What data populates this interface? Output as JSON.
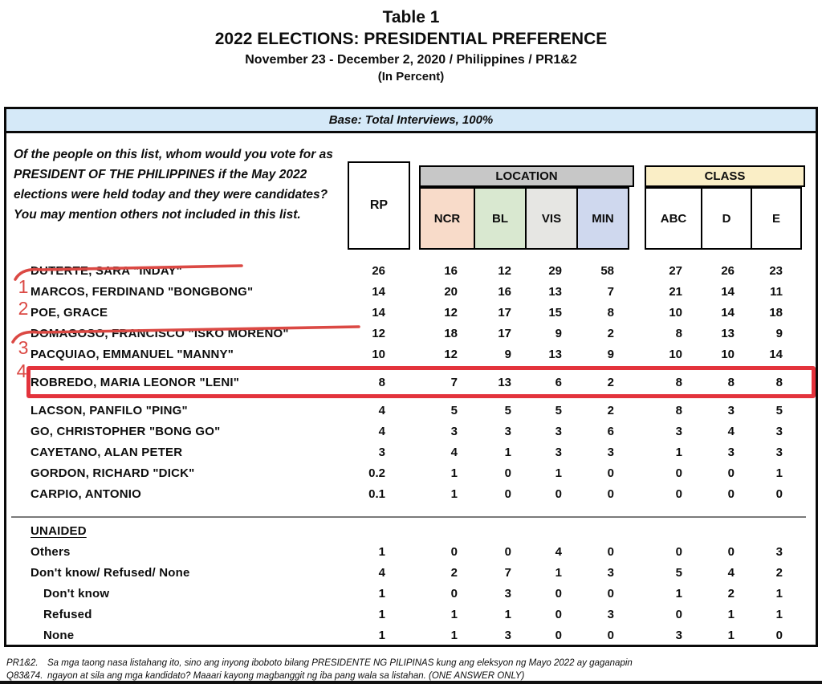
{
  "title": {
    "table_label": "Table 1",
    "main": "2022 ELECTIONS: PRESIDENTIAL PREFERENCE",
    "period": "November 23 - December 2, 2020 / Philippines / PR1&2",
    "unit": "(In Percent)"
  },
  "base_label": "Base: Total Interviews, 100%",
  "question": "Of the people on this list, whom would you vote for as PRESIDENT OF THE PHILIPPINES if the May 2022 elections were held today and they were candidates? You may mention others not included in this list.",
  "columns": {
    "rp": "RP",
    "location_group": "LOCATION",
    "location": [
      "NCR",
      "BL",
      "VIS",
      "MIN"
    ],
    "class_group": "CLASS",
    "class": [
      "ABC",
      "D",
      "E"
    ]
  },
  "table": {
    "rows": [
      {
        "name": "DUTERTE, SARA \"INDAY\"",
        "values": [
          "26",
          "16",
          "12",
          "29",
          "58",
          "27",
          "26",
          "23"
        ],
        "struck": true
      },
      {
        "name": "MARCOS, FERDINAND \"BONGBONG\"",
        "values": [
          "14",
          "20",
          "16",
          "13",
          "7",
          "21",
          "14",
          "11"
        ]
      },
      {
        "name": "POE, GRACE",
        "values": [
          "14",
          "12",
          "17",
          "15",
          "8",
          "10",
          "14",
          "18"
        ]
      },
      {
        "name": "DOMAGOSO, FRANCISCO \"ISKO MORENO\"",
        "values": [
          "12",
          "18",
          "17",
          "9",
          "2",
          "8",
          "13",
          "9"
        ],
        "struck": true
      },
      {
        "name": "PACQUIAO, EMMANUEL \"MANNY\"",
        "values": [
          "10",
          "12",
          "9",
          "13",
          "9",
          "10",
          "10",
          "14"
        ]
      },
      {
        "name": "ROBREDO, MARIA LEONOR \"LENI\"",
        "values": [
          "8",
          "7",
          "13",
          "6",
          "2",
          "8",
          "8",
          "8"
        ],
        "boxed": true
      },
      {
        "name": "LACSON, PANFILO \"PING\"",
        "values": [
          "4",
          "5",
          "5",
          "5",
          "2",
          "8",
          "3",
          "5"
        ]
      },
      {
        "name": "GO, CHRISTOPHER \"BONG GO\"",
        "values": [
          "4",
          "3",
          "3",
          "3",
          "6",
          "3",
          "4",
          "3"
        ]
      },
      {
        "name": "CAYETANO, ALAN PETER",
        "values": [
          "3",
          "4",
          "1",
          "3",
          "3",
          "1",
          "3",
          "3"
        ]
      },
      {
        "name": "GORDON, RICHARD \"DICK\"",
        "values": [
          "0.2",
          "1",
          "0",
          "1",
          "0",
          "0",
          "0",
          "1"
        ]
      },
      {
        "name": "CARPIO, ANTONIO",
        "values": [
          "0.1",
          "1",
          "0",
          "0",
          "0",
          "0",
          "0",
          "0"
        ]
      },
      {
        "name": "UNAIDED",
        "values": [],
        "section": true,
        "divider_above": true
      },
      {
        "name": "Others",
        "values": [
          "1",
          "0",
          "0",
          "4",
          "0",
          "0",
          "0",
          "3"
        ]
      },
      {
        "name": "Don't know/ Refused/ None",
        "values": [
          "4",
          "2",
          "7",
          "1",
          "3",
          "5",
          "4",
          "2"
        ]
      },
      {
        "name": "Don't know",
        "values": [
          "1",
          "0",
          "3",
          "0",
          "0",
          "1",
          "2",
          "1"
        ],
        "indent": true
      },
      {
        "name": "Refused",
        "values": [
          "1",
          "1",
          "1",
          "0",
          "3",
          "0",
          "1",
          "1"
        ],
        "indent": true
      },
      {
        "name": "None",
        "values": [
          "1",
          "1",
          "3",
          "0",
          "0",
          "3",
          "1",
          "0"
        ],
        "indent": true
      }
    ]
  },
  "annotations": {
    "marker_1": "1",
    "marker_2": "2",
    "marker_3": "3",
    "marker_4": "4",
    "stroke_color": "#db4944",
    "box_color": "#e3333c",
    "struck_rows": [
      "DUTERTE, SARA \"INDAY\"",
      "DOMAGOSO, FRANCISCO \"ISKO MORENO\""
    ],
    "boxed_row": "ROBREDO, MARIA LEONOR \"LENI\""
  },
  "footnote": {
    "line1_label": "PR1&2.",
    "line1_text": "Sa mga taong nasa listahang ito, sino ang inyong iboboto bilang PRESIDENTE NG PILIPINAS kung ang eleksyon ng Mayo 2022 ay gaganapin",
    "line2_label": "Q83&74.",
    "line2_text": "ngayon at sila ang mga kandidato? Maaari kayong magbanggit ng iba pang wala sa listahan. (ONE ANSWER ONLY)"
  },
  "theme": {
    "base_bg": "#d5e9f8",
    "location_bar_bg": "#c7c7c7",
    "class_bar_bg": "#faeec6",
    "ncr_bg": "#f8dbc9",
    "bl_bg": "#d9e8d0",
    "vis_bg": "#e6e6e3",
    "min_bg": "#cfd8ee"
  }
}
